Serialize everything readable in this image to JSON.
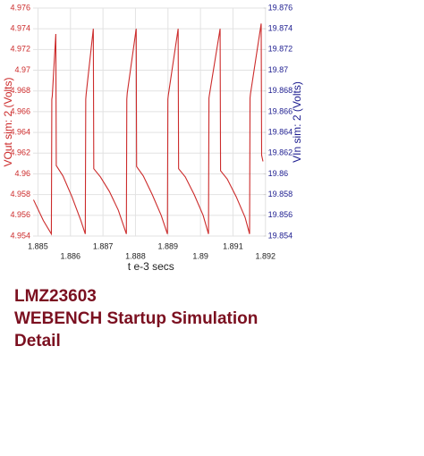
{
  "chart_data": {
    "type": "line",
    "title_lines": [
      "LMZ23603",
      "WEBENCH Startup Simulation",
      "Detail"
    ],
    "xlabel": "t e-3 secs",
    "ylabel": "VOut sim:  2 (Volts)",
    "y2label": "VIn sim:  2 (Volts)",
    "ylabel_color": "#cc2b2b",
    "y2label_color": "#1c1c8f",
    "grid": true,
    "xlim": [
      1.88485,
      1.89194
    ],
    "xticks": [
      1.885,
      1.886,
      1.887,
      1.888,
      1.889,
      1.89,
      1.891,
      1.892
    ],
    "ylim": [
      4.954,
      4.976
    ],
    "yticks": [
      4.954,
      4.956,
      4.958,
      4.96,
      4.962,
      4.964,
      4.966,
      4.968,
      4.97,
      4.972,
      4.974,
      4.976
    ],
    "y2lim": [
      19.854,
      19.876
    ],
    "y2ticks": [
      19.854,
      19.856,
      19.858,
      19.86,
      19.862,
      19.864,
      19.866,
      19.868,
      19.87,
      19.872,
      19.874,
      19.876
    ],
    "x": [
      1.884863,
      1.885165,
      1.885412,
      1.885426,
      1.88544,
      1.885549,
      1.885563,
      1.885769,
      1.886044,
      1.886319,
      1.886456,
      1.88647,
      1.886483,
      1.886703,
      1.886717,
      1.886923,
      1.887198,
      1.887472,
      1.88772,
      1.887733,
      1.887747,
      1.888022,
      1.888035,
      1.888241,
      1.888516,
      1.888791,
      1.888983,
      1.888997,
      1.889011,
      1.889313,
      1.889327,
      1.889533,
      1.889807,
      1.890082,
      1.890247,
      1.890261,
      1.890274,
      1.890604,
      1.890618,
      1.890824,
      1.891099,
      1.891373,
      1.891511,
      1.891525,
      1.891538,
      1.891868,
      1.891882,
      1.891923
    ],
    "series": [
      {
        "color": "#cc2b2b",
        "values": [
          4.9575,
          4.9555,
          4.9542,
          4.9672,
          4.9675,
          4.9735,
          4.9608,
          4.9598,
          4.9578,
          4.9555,
          4.9542,
          4.9672,
          4.9677,
          4.974,
          4.9605,
          4.9597,
          4.9583,
          4.9565,
          4.9542,
          4.9672,
          4.9678,
          4.974,
          4.9607,
          4.9598,
          4.958,
          4.956,
          4.9542,
          4.9672,
          4.9676,
          4.974,
          4.9605,
          4.9597,
          4.958,
          4.956,
          4.9542,
          4.9673,
          4.9676,
          4.974,
          4.9603,
          4.9595,
          4.9578,
          4.9558,
          4.9542,
          4.9673,
          4.9677,
          4.9745,
          4.9618,
          4.9612
        ]
      }
    ]
  }
}
